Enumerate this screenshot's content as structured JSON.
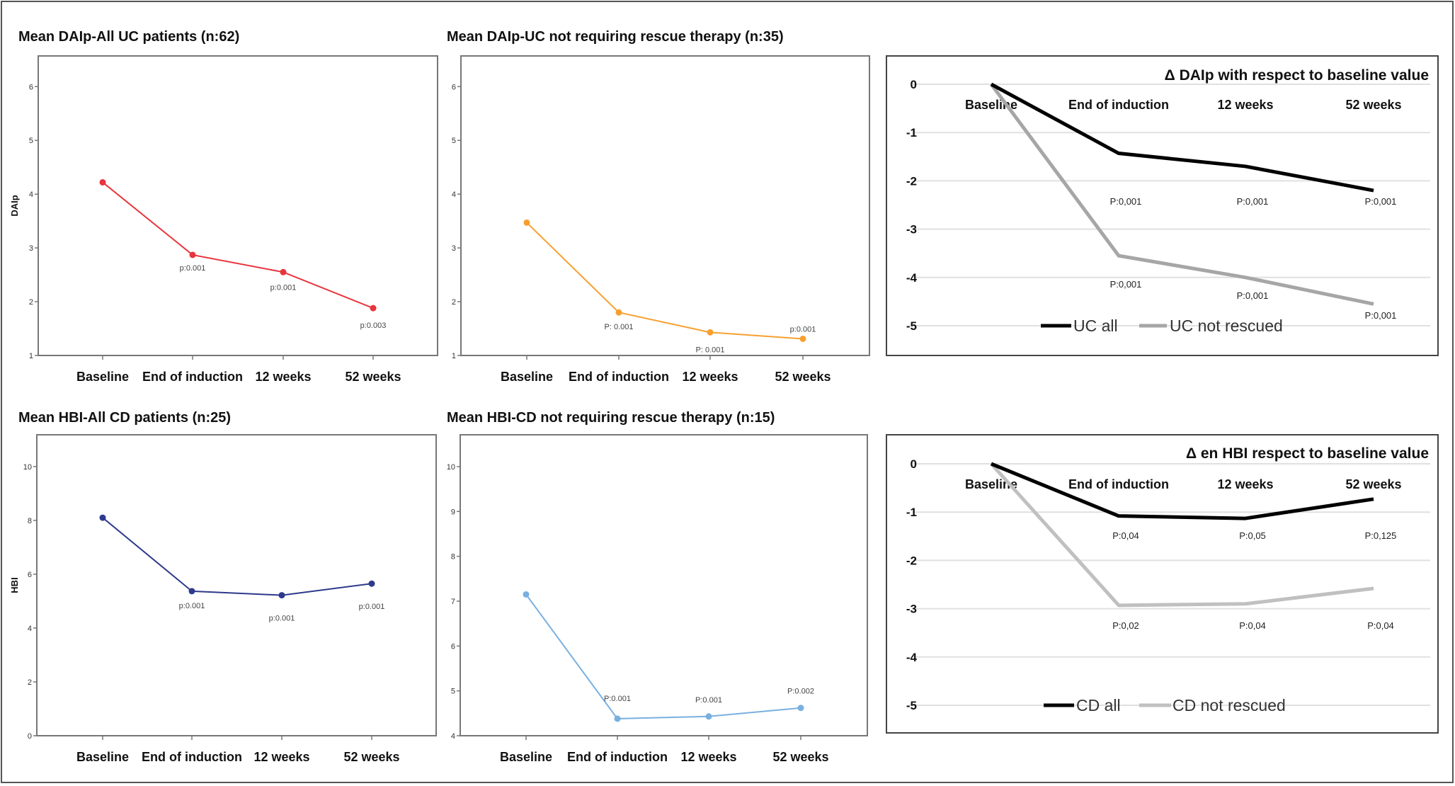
{
  "chart_data": [
    {
      "type": "line",
      "title": "Mean DAIp-All UC patients (n:62)",
      "ylabel": "DAIp",
      "categories": [
        "Baseline",
        "End of induction",
        "12 weeks",
        "52 weeks"
      ],
      "ylim": [
        1,
        6.57
      ],
      "yticks": [
        "1",
        "2",
        "3",
        "4",
        "5",
        "6"
      ],
      "color": "#e8343c",
      "series": [
        {
          "values": [
            4.22,
            2.87,
            2.55,
            1.88
          ],
          "p_labels": [
            "",
            "p:0.001",
            "p:0.001",
            "p:0.003"
          ]
        }
      ]
    },
    {
      "type": "line",
      "title": "Mean DAIp-UC not requiring rescue therapy (n:35)",
      "ylabel": "",
      "categories": [
        "Baseline",
        "End of induction",
        "12 weeks",
        "52 weeks"
      ],
      "ylim": [
        1,
        6.57
      ],
      "yticks": [
        "1",
        "2",
        "3",
        "4",
        "5",
        "6"
      ],
      "color": "#f7a030",
      "series": [
        {
          "values": [
            3.47,
            1.8,
            1.43,
            1.31
          ],
          "p_labels": [
            "",
            "P: 0.001",
            "P: 0.001",
            "p:0.001"
          ]
        }
      ]
    },
    {
      "type": "line",
      "title": "Δ DAIp with respect to baseline value",
      "categories": [
        "Baseline",
        "End of induction",
        "12 weeks",
        "52 weeks"
      ],
      "ylim": [
        -5,
        0
      ],
      "yticks": [
        "0",
        "-1",
        "-2",
        "-3",
        "-4",
        "-5"
      ],
      "grid": true,
      "legend": "bottom",
      "series": [
        {
          "name": "UC all",
          "color": "#000000",
          "values": [
            0,
            -1.43,
            -1.7,
            -2.2
          ],
          "p_labels": [
            "",
            "P:0,001",
            "P:0,001",
            "P:0,001"
          ]
        },
        {
          "name": "UC  not rescued",
          "color": "#a6a6a6",
          "values": [
            0,
            -3.55,
            -4.0,
            -4.55
          ],
          "p_labels": [
            "",
            "P:0,001",
            "P:0,001",
            "P:0,001"
          ]
        }
      ]
    },
    {
      "type": "line",
      "title": "Mean HBI-All CD patients (n:25)",
      "ylabel": "HBI",
      "categories": [
        "Baseline",
        "End of induction",
        "12 weeks",
        "52 weeks"
      ],
      "ylim": [
        0,
        11.18
      ],
      "yticks": [
        "0",
        "2",
        "4",
        "6",
        "8",
        "10"
      ],
      "color": "#2e3a8c",
      "series": [
        {
          "values": [
            8.1,
            5.37,
            5.22,
            5.65
          ],
          "p_labels": [
            "",
            "p:0.001",
            "p:0.001",
            "p:0.001"
          ]
        }
      ]
    },
    {
      "type": "line",
      "title": "Mean HBI-CD not requiring rescue therapy (n:15)",
      "ylabel": "",
      "categories": [
        "Baseline",
        "End of induction",
        "12 weeks",
        "52 weeks"
      ],
      "ylim": [
        4,
        10.71
      ],
      "yticks": [
        "4",
        "5",
        "6",
        "7",
        "8",
        "9",
        "10"
      ],
      "color": "#7ab0e0",
      "series": [
        {
          "values": [
            7.15,
            4.38,
            4.43,
            4.62
          ],
          "p_labels": [
            "",
            "P:0.001",
            "P:0.001",
            "P:0.002"
          ]
        }
      ]
    },
    {
      "type": "line",
      "title": "Δ en HBI respect to baseline value",
      "categories": [
        "Baseline",
        "End of induction",
        "12 weeks",
        "52 weeks"
      ],
      "ylim": [
        -5,
        0
      ],
      "yticks": [
        "0",
        "-1",
        "-2",
        "-3",
        "-4",
        "-5"
      ],
      "grid": true,
      "legend": "bottom",
      "series": [
        {
          "name": "CD all",
          "color": "#000000",
          "values": [
            0,
            -1.08,
            -1.13,
            -0.73
          ],
          "p_labels": [
            "",
            "P:0,04",
            "P:0,05",
            "P:0,125"
          ]
        },
        {
          "name": "CD not rescued",
          "color": "#c0c0c0",
          "values": [
            0,
            -2.93,
            -2.9,
            -2.58
          ],
          "p_labels": [
            "",
            "P:0,02",
            "P:0,04",
            "P:0,04"
          ]
        }
      ]
    }
  ]
}
